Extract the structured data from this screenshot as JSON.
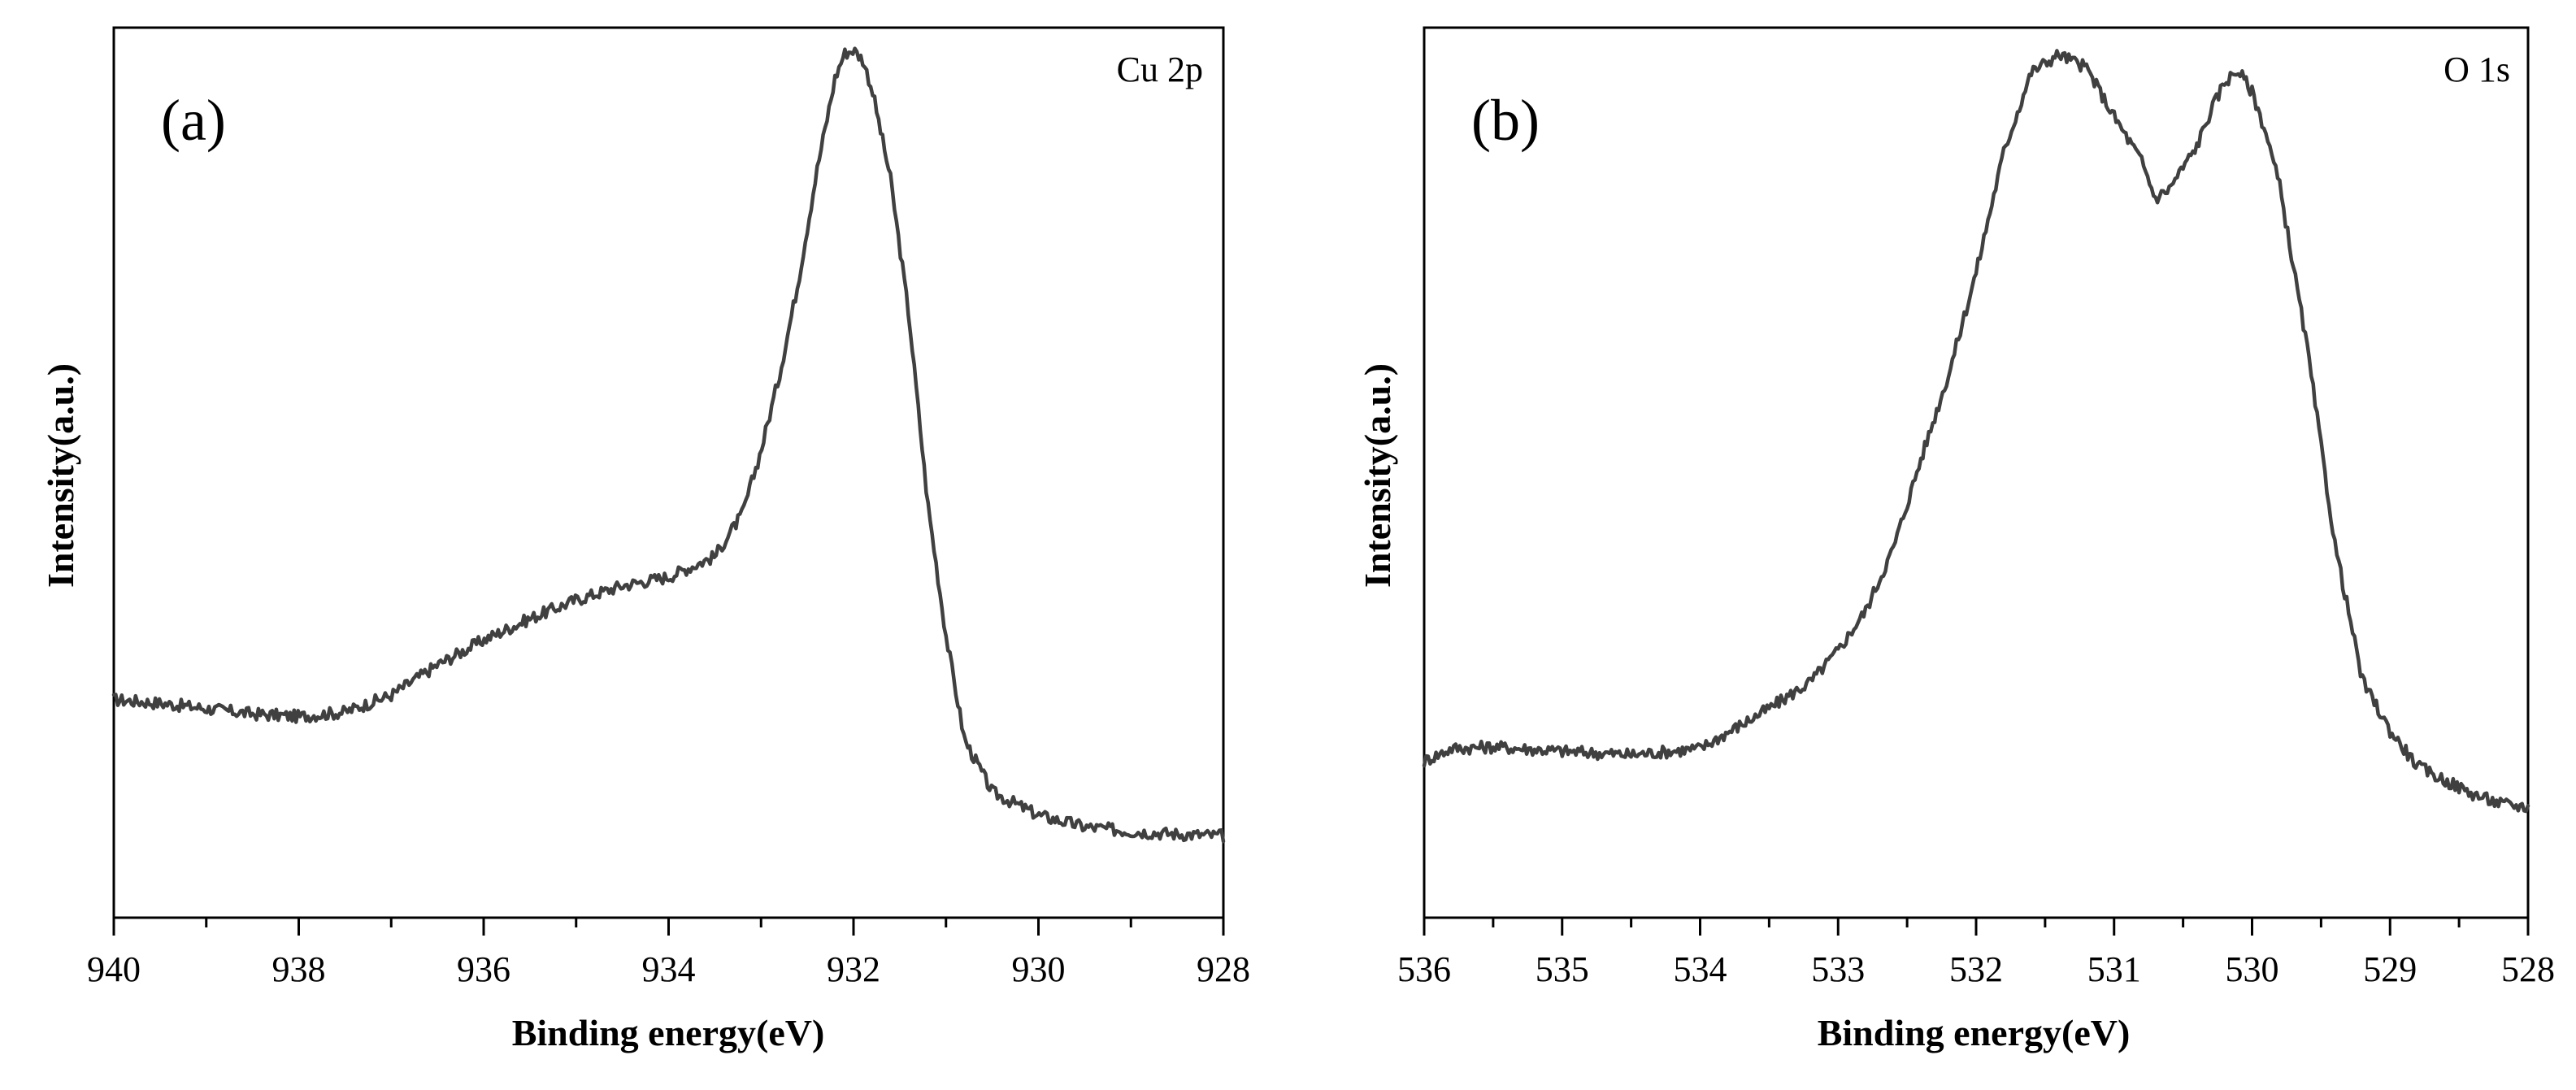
{
  "chart_data": [
    {
      "type": "line",
      "panel_tag": "(a)",
      "corner_label": "Cu 2p",
      "xlabel": "Binding energy(eV)",
      "ylabel": "Intensity(a.u.)",
      "xlim": [
        940,
        928
      ],
      "ylim": [
        0,
        100
      ],
      "x_ticks": [
        940,
        938,
        936,
        934,
        932,
        930,
        928
      ],
      "x_tick_labels": [
        "940",
        "938",
        "936",
        "934",
        "932",
        "930",
        "928"
      ],
      "series": [
        {
          "name": "Cu 2p",
          "x": [
            940.0,
            939.5,
            939.0,
            938.5,
            938.0,
            937.5,
            937.0,
            936.5,
            936.0,
            935.5,
            935.0,
            934.5,
            934.0,
            933.5,
            933.2,
            933.0,
            932.8,
            932.6,
            932.4,
            932.2,
            932.1,
            932.0,
            931.9,
            931.8,
            931.6,
            931.4,
            931.2,
            931.0,
            930.8,
            930.5,
            930.0,
            929.5,
            929.0,
            928.5,
            928.0
          ],
          "y": [
            24.5,
            24.1,
            23.5,
            22.9,
            22.6,
            23.1,
            25.0,
            28.4,
            31.2,
            33.6,
            35.7,
            37.3,
            38.3,
            40.6,
            45.4,
            52.5,
            61.0,
            71.3,
            83.7,
            94.3,
            97.1,
            97.5,
            96.4,
            93.1,
            83.0,
            67.6,
            46.8,
            31.7,
            20.0,
            14.1,
            11.5,
            10.2,
            9.7,
            9.4,
            9.2
          ]
        }
      ]
    },
    {
      "type": "line",
      "panel_tag": "(b)",
      "corner_label": "O 1s",
      "xlabel": "Binding energy(eV)",
      "ylabel": "Intensity(a.u.)",
      "xlim": [
        536,
        528
      ],
      "ylim": [
        0,
        100
      ],
      "x_ticks": [
        536,
        535,
        534,
        533,
        532,
        531,
        530,
        529,
        528
      ],
      "x_tick_labels": [
        "536",
        "535",
        "534",
        "533",
        "532",
        "531",
        "530",
        "529",
        "528"
      ],
      "series": [
        {
          "name": "O 1s",
          "x": [
            536.0,
            535.8,
            535.5,
            535.0,
            534.5,
            534.0,
            533.8,
            533.5,
            533.2,
            533.0,
            532.8,
            532.6,
            532.4,
            532.2,
            532.0,
            531.8,
            531.6,
            531.4,
            531.2,
            531.0,
            530.8,
            530.7,
            530.6,
            530.5,
            530.4,
            530.3,
            530.2,
            530.1,
            530.0,
            529.9,
            529.8,
            529.6,
            529.4,
            529.2,
            529.0,
            528.8,
            528.6,
            528.4,
            528.2,
            528.0
          ],
          "y": [
            17.6,
            19.0,
            19.2,
            18.7,
            18.3,
            19.0,
            20.8,
            23.5,
            26.5,
            30.0,
            34.5,
            41.5,
            51.5,
            61.0,
            72.5,
            86.0,
            95.0,
            97.0,
            95.5,
            90.0,
            85.0,
            80.8,
            81.9,
            84.3,
            86.7,
            90.6,
            93.9,
            95.2,
            92.8,
            88.2,
            82.2,
            64.0,
            42.0,
            26.6,
            21.0,
            17.0,
            15.4,
            13.9,
            12.8,
            12.4
          ]
        }
      ]
    }
  ]
}
